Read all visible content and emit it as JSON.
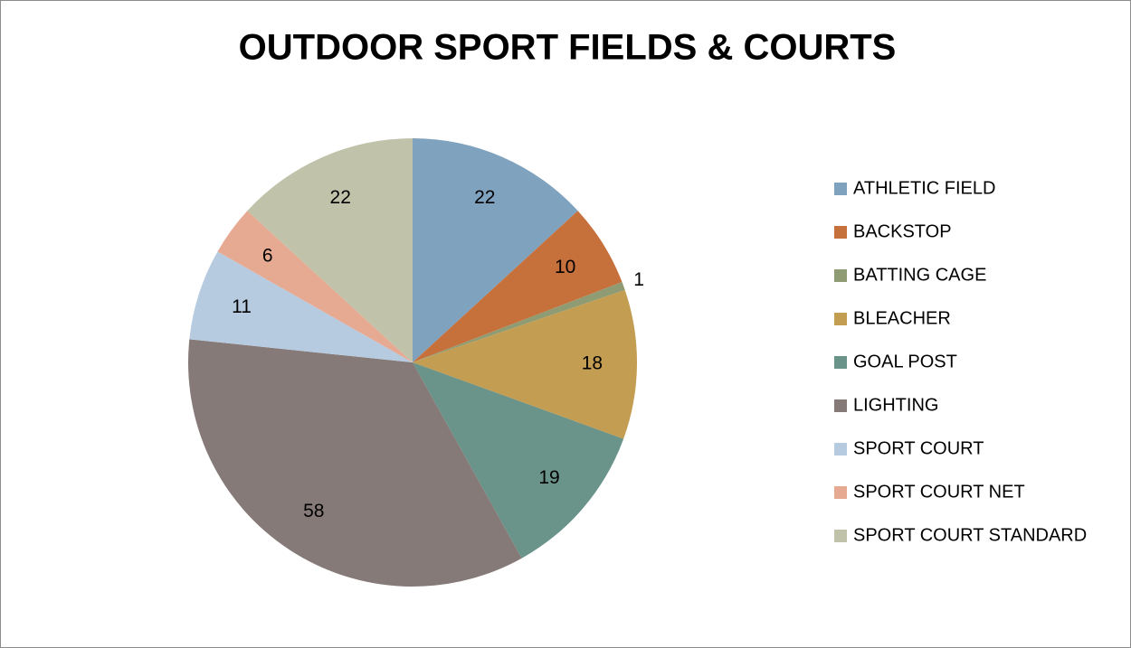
{
  "chart_data": {
    "type": "pie",
    "title": "OUTDOOR SPORT FIELDS & COURTS",
    "categories": [
      "ATHLETIC FIELD",
      "BACKSTOP",
      "BATTING CAGE",
      "BLEACHER",
      "GOAL POST",
      "LIGHTING",
      "SPORT COURT",
      "SPORT COURT NET",
      "SPORT COURT STANDARD"
    ],
    "values": [
      22,
      10,
      1,
      18,
      19,
      58,
      11,
      6,
      22
    ],
    "colors": [
      "#7fa2bf",
      "#c6703c",
      "#8f9b72",
      "#c29d52",
      "#6a9389",
      "#857a78",
      "#b6cbe0",
      "#e6a992",
      "#c0c3aa"
    ],
    "legend": "right"
  }
}
